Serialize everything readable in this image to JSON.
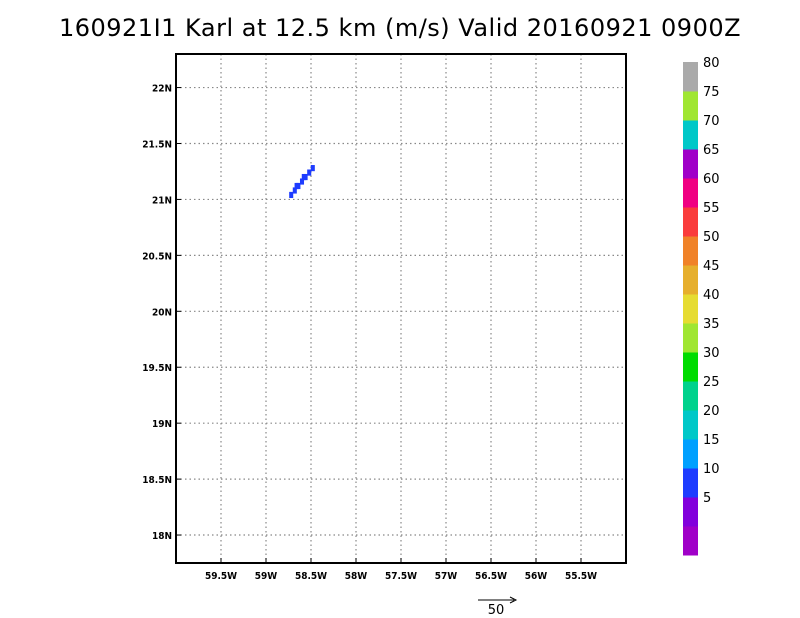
{
  "title": "160921I1 Karl at 12.5 km (m/s) Valid 20160921 0900Z",
  "map": {
    "lon_range": [
      -60.0,
      -55.0
    ],
    "lat_range": [
      17.75,
      22.3
    ],
    "x_ticks": [
      {
        "value": -59.5,
        "label": "59.5W"
      },
      {
        "value": -59.0,
        "label": "59W"
      },
      {
        "value": -58.5,
        "label": "58.5W"
      },
      {
        "value": -58.0,
        "label": "58W"
      },
      {
        "value": -57.5,
        "label": "57.5W"
      },
      {
        "value": -57.0,
        "label": "57W"
      },
      {
        "value": -56.5,
        "label": "56.5W"
      },
      {
        "value": -56.0,
        "label": "56W"
      },
      {
        "value": -55.5,
        "label": "55.5W"
      }
    ],
    "y_ticks": [
      {
        "value": 22.0,
        "label": "22N"
      },
      {
        "value": 21.5,
        "label": "21.5N"
      },
      {
        "value": 21.0,
        "label": "21N"
      },
      {
        "value": 20.5,
        "label": "20.5N"
      },
      {
        "value": 20.0,
        "label": "20N"
      },
      {
        "value": 19.5,
        "label": "19.5N"
      },
      {
        "value": 19.0,
        "label": "19N"
      },
      {
        "value": 18.5,
        "label": "18.5N"
      },
      {
        "value": 18.0,
        "label": "18N"
      }
    ],
    "grid": "dotted",
    "wind_cells": [
      {
        "lon": -58.72,
        "lat": 21.04,
        "value": 12
      },
      {
        "lon": -58.68,
        "lat": 21.08,
        "value": 12
      },
      {
        "lon": -58.64,
        "lat": 21.12,
        "value": 12
      },
      {
        "lon": -58.6,
        "lat": 21.16,
        "value": 12
      },
      {
        "lon": -58.56,
        "lat": 21.2,
        "value": 12
      },
      {
        "lon": -58.52,
        "lat": 21.24,
        "value": 12
      },
      {
        "lon": -58.48,
        "lat": 21.28,
        "value": 12
      },
      {
        "lon": -58.66,
        "lat": 21.12,
        "value": 14
      },
      {
        "lon": -58.58,
        "lat": 21.2,
        "value": 14
      }
    ]
  },
  "colorbar": {
    "bins": [
      {
        "label": "",
        "color": "#a000c8"
      },
      {
        "label": "5",
        "color": "#8200dc"
      },
      {
        "label": "10",
        "color": "#1e3cff"
      },
      {
        "label": "15",
        "color": "#00a0ff"
      },
      {
        "label": "20",
        "color": "#00c8c8"
      },
      {
        "label": "25",
        "color": "#00d28c"
      },
      {
        "label": "30",
        "color": "#00dc00"
      },
      {
        "label": "35",
        "color": "#a0e632"
      },
      {
        "label": "40",
        "color": "#e6dc32"
      },
      {
        "label": "45",
        "color": "#e6af2d"
      },
      {
        "label": "50",
        "color": "#f08228"
      },
      {
        "label": "55",
        "color": "#fa3c3c"
      },
      {
        "label": "60",
        "color": "#f00082"
      },
      {
        "label": "65",
        "color": "#a000c8"
      },
      {
        "label": "70",
        "color": "#00c8c8"
      },
      {
        "label": "75",
        "color": "#a0e632"
      },
      {
        "label": "80",
        "color": "#aaaaaa"
      }
    ]
  },
  "vector_key": {
    "label": "50"
  }
}
